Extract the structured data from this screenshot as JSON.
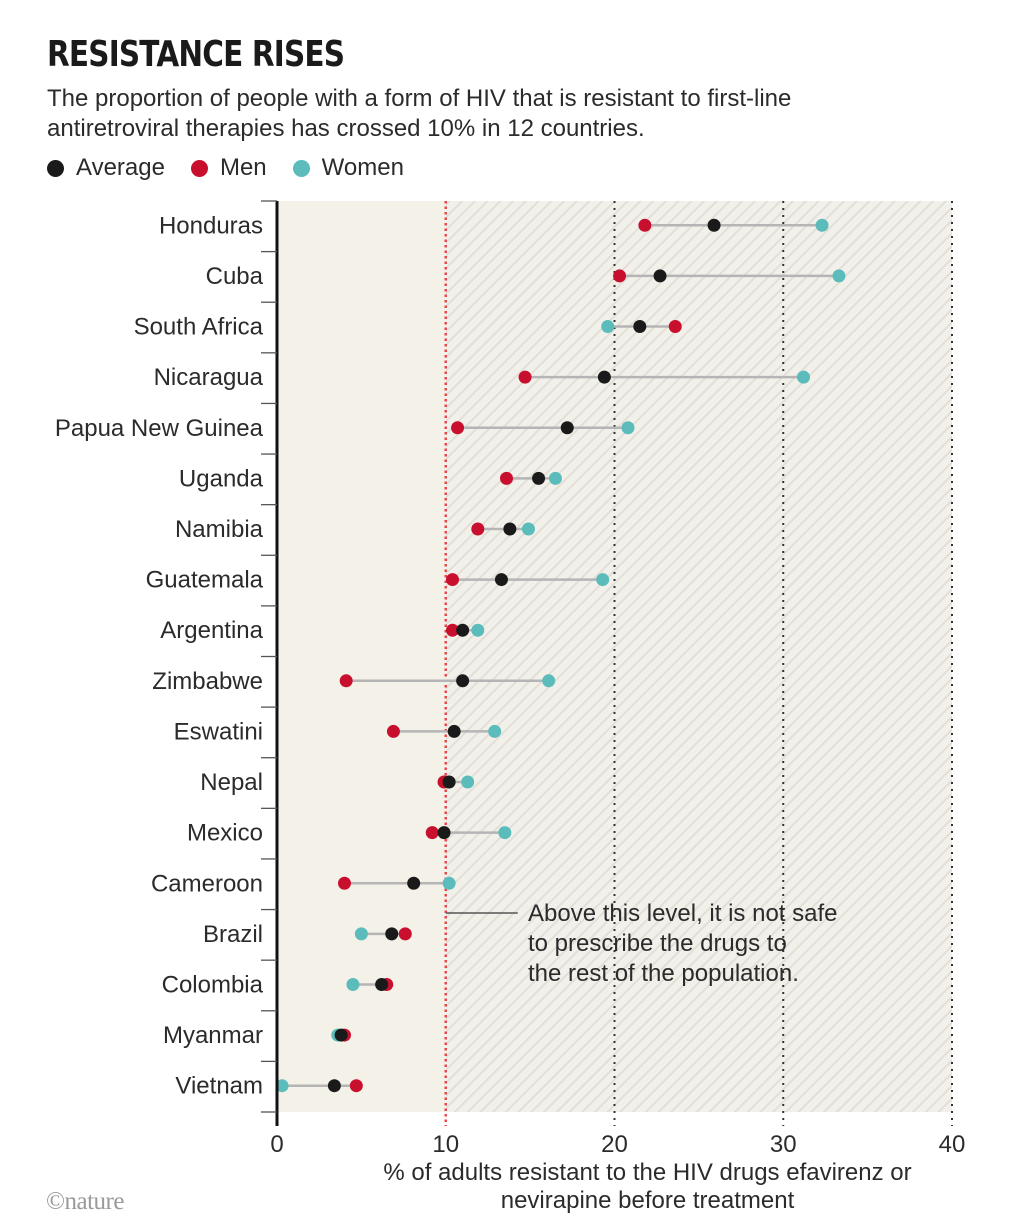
{
  "header": {
    "title": "RESISTANCE RISES",
    "subtitle_line1": "The proportion of people with a form of HIV that is resistant to first-line",
    "subtitle_line2": "antiretroviral therapies has crossed 10% in 12 countries."
  },
  "legend": [
    {
      "label": "Average",
      "color": "#1a1a1a"
    },
    {
      "label": "Men",
      "color": "#c8102e"
    },
    {
      "label": "Women",
      "color": "#5bbcbb"
    }
  ],
  "colors": {
    "average": "#1a1a1a",
    "men": "#c8102e",
    "women": "#5bbcbb",
    "background_safe": "#f4f1e9",
    "threshold_line": "#e8474c",
    "connector": "#b5b5b5"
  },
  "chart_data": {
    "type": "dot-range",
    "title": "RESISTANCE RISES",
    "subtitle": "The proportion of people with a form of HIV that is resistant to first-line antiretroviral therapies has crossed 10% in 12 countries.",
    "xlabel_line1": "% of adults resistant to the HIV drugs efavirenz or",
    "xlabel_line2": "nevirapine before treatment",
    "xlim": [
      0,
      40
    ],
    "xticks": [
      0,
      10,
      20,
      30,
      40
    ],
    "grid": "dotted vertical at 20, 30, 40",
    "threshold": 10,
    "annotation": [
      "Above this level, it is not safe",
      "to prescribe the drugs to",
      "the rest of the population."
    ],
    "legend_position": "top-left",
    "categories": [
      "Honduras",
      "Cuba",
      "South Africa",
      "Nicaragua",
      "Papua New Guinea",
      "Uganda",
      "Namibia",
      "Guatemala",
      "Argentina",
      "Zimbabwe",
      "Eswatini",
      "Nepal",
      "Mexico",
      "Cameroon",
      "Brazil",
      "Colombia",
      "Myanmar",
      "Vietnam"
    ],
    "series": [
      {
        "name": "Men",
        "values": [
          21.8,
          20.3,
          23.6,
          14.7,
          10.7,
          13.6,
          11.9,
          10.4,
          10.4,
          4.1,
          6.9,
          9.9,
          9.2,
          4.0,
          7.6,
          6.5,
          4.0,
          4.7
        ]
      },
      {
        "name": "Women",
        "values": [
          32.3,
          33.3,
          19.6,
          31.2,
          20.8,
          16.5,
          14.9,
          19.3,
          11.9,
          16.1,
          12.9,
          11.3,
          13.5,
          10.2,
          5.0,
          4.5,
          3.6,
          0.3
        ]
      },
      {
        "name": "Average",
        "values": [
          25.9,
          22.7,
          21.5,
          19.4,
          17.2,
          15.5,
          13.8,
          13.3,
          11.0,
          11.0,
          10.5,
          10.2,
          9.9,
          8.1,
          6.8,
          6.2,
          3.8,
          3.4
        ]
      }
    ]
  },
  "footer": {
    "credit": "©nature"
  }
}
